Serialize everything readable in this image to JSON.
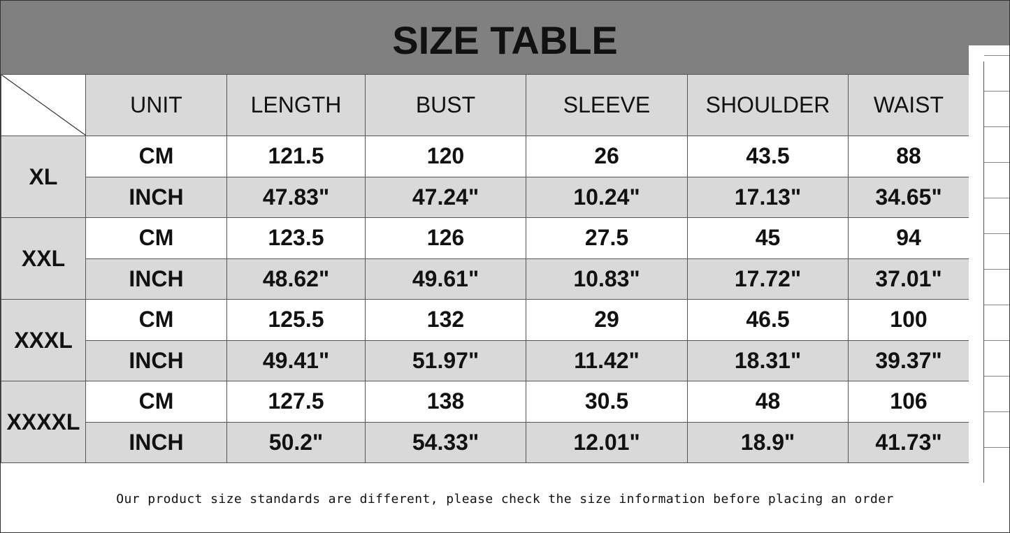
{
  "title": "SIZE TABLE",
  "headers": [
    "UNIT",
    "LENGTH",
    "BUST",
    "SLEEVE",
    "SHOULDER",
    "WAIST"
  ],
  "sizes": [
    {
      "size": "XL",
      "rows": [
        [
          "CM",
          "121.5",
          "120",
          "26",
          "43.5",
          "88"
        ],
        [
          "INCH",
          "47.83\"",
          "47.24\"",
          "10.24\"",
          "17.13\"",
          "34.65\""
        ]
      ]
    },
    {
      "size": "XXL",
      "rows": [
        [
          "CM",
          "123.5",
          "126",
          "27.5",
          "45",
          "94"
        ],
        [
          "INCH",
          "48.62\"",
          "49.61\"",
          "10.83\"",
          "17.72\"",
          "37.01\""
        ]
      ]
    },
    {
      "size": "XXXL",
      "rows": [
        [
          "CM",
          "125.5",
          "132",
          "29",
          "46.5",
          "100"
        ],
        [
          "INCH",
          "49.41\"",
          "51.97\"",
          "11.42\"",
          "18.31\"",
          "39.37\""
        ]
      ]
    },
    {
      "size": "XXXXL",
      "rows": [
        [
          "CM",
          "127.5",
          "138",
          "30.5",
          "48",
          "106"
        ],
        [
          "INCH",
          "50.2\"",
          "54.33\"",
          "12.01\"",
          "18.9\"",
          "41.73\""
        ]
      ]
    }
  ],
  "note": "Our product size standards are different, please check the size information before placing an order",
  "colors": {
    "banner": "#808080",
    "shaded_cell": "#d9d9d9"
  }
}
